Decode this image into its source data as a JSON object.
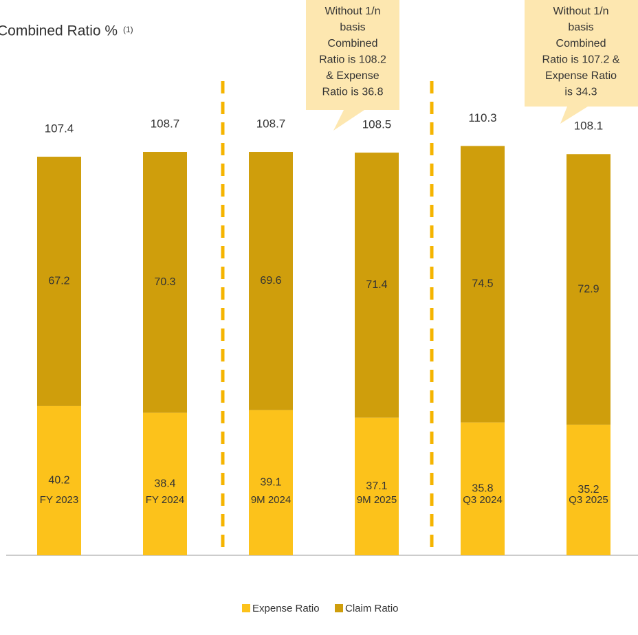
{
  "chart_data": {
    "type": "stacked_bar",
    "title": "Combined Ratio %",
    "title_note": "(1)",
    "categories": [
      "FY 2023",
      "FY 2024",
      "9M 2024",
      "9M 2025",
      "Q3 2024",
      "Q3 2025"
    ],
    "series": [
      {
        "name": "Expense Ratio",
        "color": "#fcc21b",
        "values": [
          40.2,
          38.4,
          39.1,
          37.1,
          35.8,
          35.2
        ]
      },
      {
        "name": "Claim Ratio",
        "color": "#cf9e0c",
        "values": [
          67.2,
          70.3,
          69.6,
          71.4,
          74.5,
          72.9
        ]
      }
    ],
    "totals": [
      107.4,
      108.7,
      108.7,
      108.5,
      110.3,
      108.1
    ],
    "ylim": [
      0,
      120
    ],
    "annotations": [
      {
        "lines": [
          "Without 1/n",
          "basis",
          "Combined",
          "Ratio is 108.2",
          "& Expense",
          "Ratio is 36.8"
        ]
      },
      {
        "lines": [
          "Without 1/n",
          "basis",
          "Combined",
          "Ratio is 107.2 &",
          "Expense Ratio",
          "is 34.3"
        ]
      }
    ],
    "legend": "bottom"
  }
}
